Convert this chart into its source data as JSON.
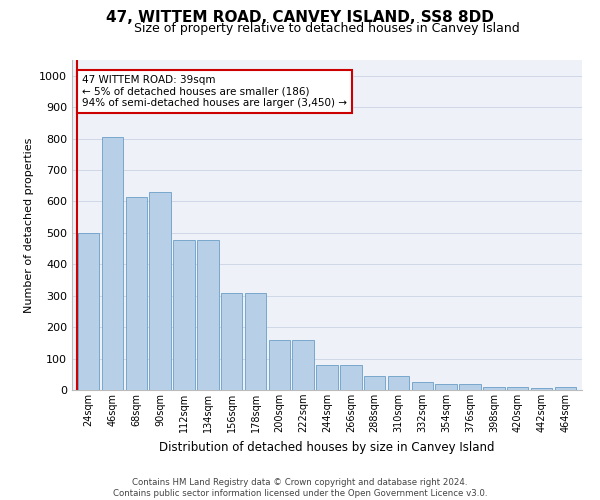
{
  "title": "47, WITTEM ROAD, CANVEY ISLAND, SS8 8DD",
  "subtitle": "Size of property relative to detached houses in Canvey Island",
  "xlabel": "Distribution of detached houses by size in Canvey Island",
  "ylabel": "Number of detached properties",
  "categories": [
    "24sqm",
    "46sqm",
    "68sqm",
    "90sqm",
    "112sqm",
    "134sqm",
    "156sqm",
    "178sqm",
    "200sqm",
    "222sqm",
    "244sqm",
    "266sqm",
    "288sqm",
    "310sqm",
    "332sqm",
    "354sqm",
    "376sqm",
    "398sqm",
    "420sqm",
    "442sqm",
    "464sqm"
  ],
  "values": [
    500,
    805,
    615,
    630,
    478,
    478,
    308,
    308,
    160,
    160,
    80,
    80,
    45,
    45,
    25,
    20,
    20,
    10,
    8,
    5,
    8
  ],
  "bar_color": "#b8cfe8",
  "bar_edge_color": "#6a9fc8",
  "ylim": [
    0,
    1050
  ],
  "yticks": [
    0,
    100,
    200,
    300,
    400,
    500,
    600,
    700,
    800,
    900,
    1000
  ],
  "annotation_text_line1": "47 WITTEM ROAD: 39sqm",
  "annotation_text_line2": "← 5% of detached houses are smaller (186)",
  "annotation_text_line3": "94% of semi-detached houses are larger (3,450) →",
  "footer_line1": "Contains HM Land Registry data © Crown copyright and database right 2024.",
  "footer_line2": "Contains public sector information licensed under the Open Government Licence v3.0.",
  "grid_color": "#d0d8e8",
  "annotation_box_color": "#ffffff",
  "annotation_box_edge": "#cc0000",
  "red_line_color": "#cc0000",
  "background_color": "#eef2f8",
  "title_fontsize": 11,
  "subtitle_fontsize": 9
}
